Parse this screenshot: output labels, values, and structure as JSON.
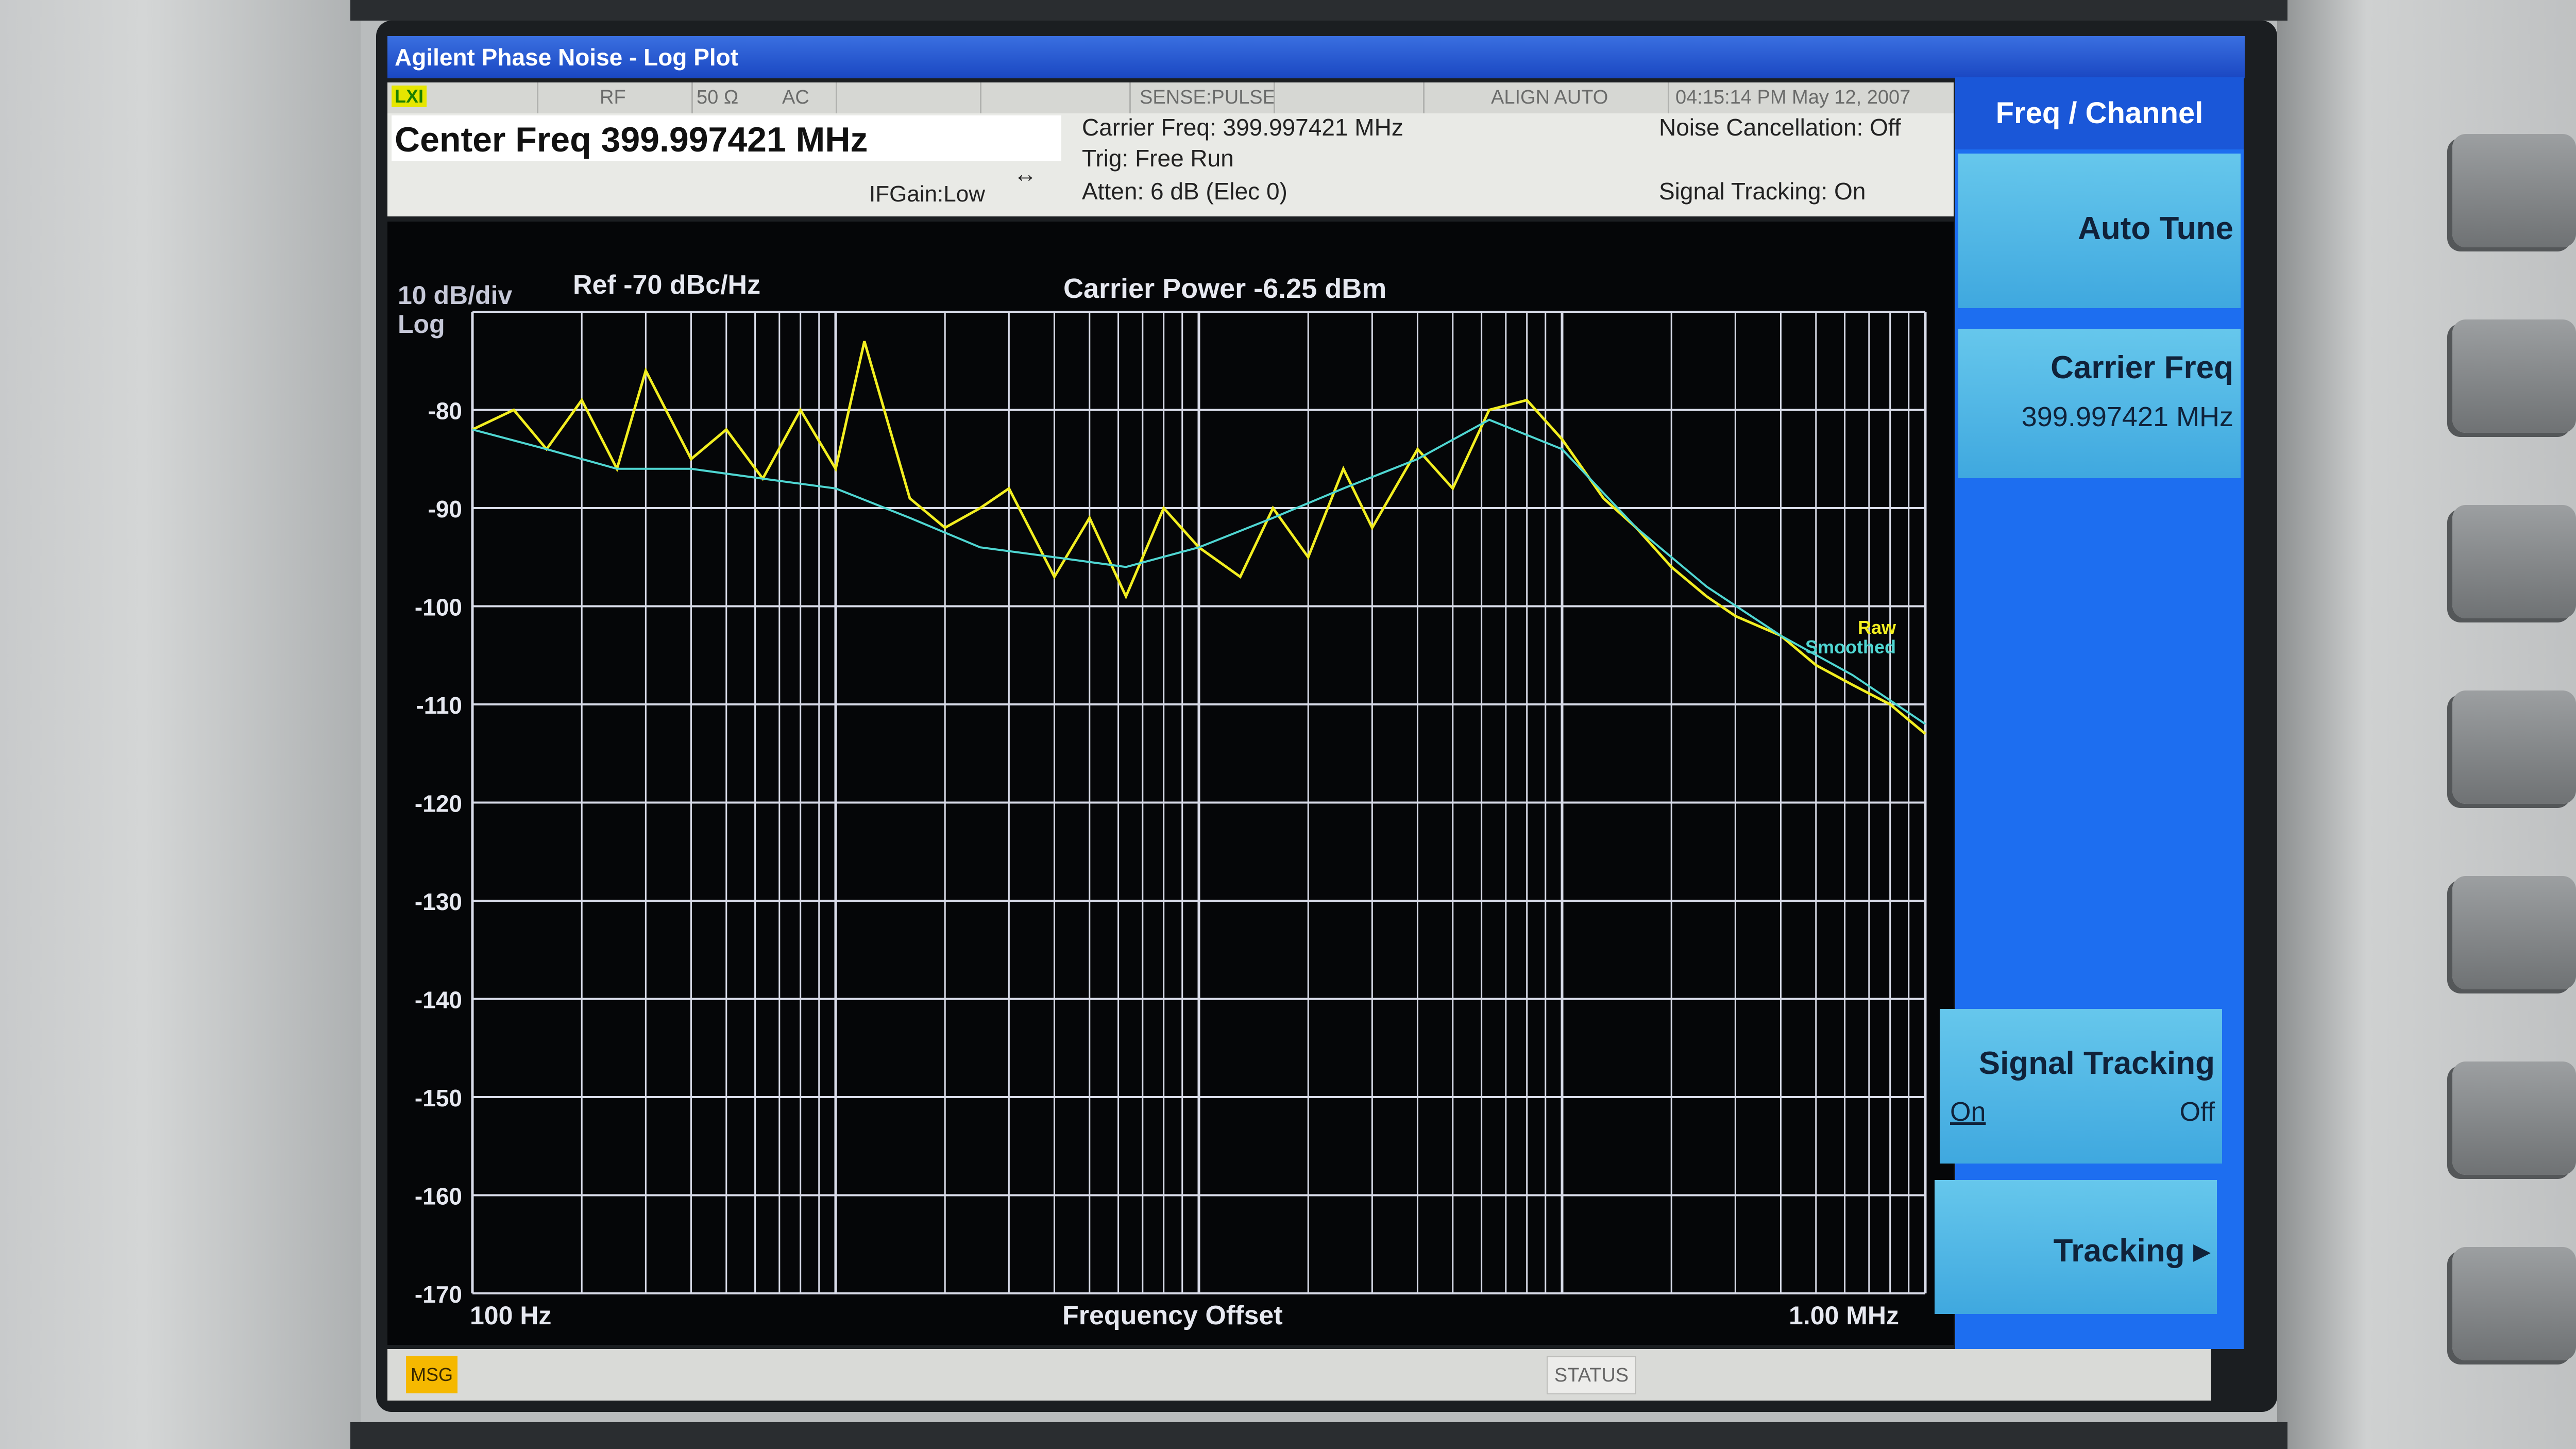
{
  "window": {
    "title": "Agilent Phase Noise - Log Plot"
  },
  "status_bar": {
    "lxi": "LXI",
    "rf": "RF",
    "impedance": "50 Ω",
    "coupling": "AC",
    "sense": "SENSE:PULSE",
    "align": "ALIGN AUTO",
    "datetime": "04:15:14 PM May 12, 2007"
  },
  "header": {
    "center_freq": "Center Freq 399.997421 MHz",
    "if_gain": "IFGain:Low",
    "carrier_freq": "Carrier Freq: 399.997421 MHz",
    "trig": "Trig: Free Run",
    "atten": "Atten: 6 dB (Elec 0)",
    "noise_cancellation": "Noise Cancellation: Off",
    "signal_tracking": "Signal Tracking: On"
  },
  "plot": {
    "scale": "10 dB/div",
    "scale_type": "Log",
    "ref": "Ref  -70 dBc/Hz",
    "carrier_power": "Carrier Power -6.25 dBm",
    "x_start": "100 Hz",
    "x_stop": "1.00 MHz",
    "x_label": "Frequency Offset",
    "y_ticks": [
      "-80",
      "-90",
      "-100",
      "-110",
      "-120",
      "-130",
      "-140",
      "-150",
      "-160",
      "-170"
    ],
    "legend_raw": "Raw",
    "legend_smoothed": "Smoothed",
    "colors": {
      "raw": "#f2ee20",
      "smoothed": "#4fd6d2",
      "grid": "#d8dbe8"
    }
  },
  "chart_data": {
    "type": "line",
    "x_scale": "log",
    "xlim": [
      100,
      1000000
    ],
    "ylim": [
      -170,
      -70
    ],
    "xlabel": "Frequency Offset",
    "series": [
      {
        "name": "Smoothed",
        "x": [
          100,
          160,
          250,
          400,
          630,
          1000,
          1600,
          2500,
          4000,
          6300,
          10000,
          16000,
          25000,
          40000,
          63000,
          100000,
          160000,
          250000,
          400000,
          630000,
          1000000
        ],
        "y": [
          -82,
          -84,
          -86,
          -86,
          -87,
          -88,
          -91,
          -94,
          -95,
          -96,
          -94,
          -91,
          -88,
          -85,
          -81,
          -84,
          -92,
          -98,
          -103,
          -107,
          -112
        ]
      },
      {
        "name": "Raw",
        "x": [
          100,
          130,
          160,
          200,
          250,
          300,
          400,
          500,
          630,
          800,
          1000,
          1200,
          1600,
          2000,
          2500,
          3000,
          4000,
          5000,
          6300,
          8000,
          10000,
          13000,
          16000,
          20000,
          25000,
          30000,
          40000,
          50000,
          63000,
          80000,
          100000,
          130000,
          160000,
          200000,
          250000,
          300000,
          400000,
          500000,
          630000,
          800000,
          1000000
        ],
        "y": [
          -82,
          -80,
          -84,
          -79,
          -86,
          -76,
          -85,
          -82,
          -87,
          -80,
          -86,
          -73,
          -89,
          -92,
          -90,
          -88,
          -97,
          -91,
          -99,
          -90,
          -94,
          -97,
          -90,
          -95,
          -86,
          -92,
          -84,
          -88,
          -80,
          -79,
          -83,
          -89,
          -92,
          -96,
          -99,
          -101,
          -103,
          -106,
          -108,
          -110,
          -113
        ]
      }
    ]
  },
  "message_bar": {
    "msg": "MSG",
    "status": "STATUS"
  },
  "softkeys": {
    "menu_title": "Freq / Channel",
    "auto_tune": "Auto Tune",
    "carrier_freq": "Carrier Freq",
    "carrier_freq_value": "399.997421 MHz",
    "signal_tracking": "Signal Tracking",
    "on": "On",
    "off": "Off",
    "tracking": "Tracking ▸"
  }
}
